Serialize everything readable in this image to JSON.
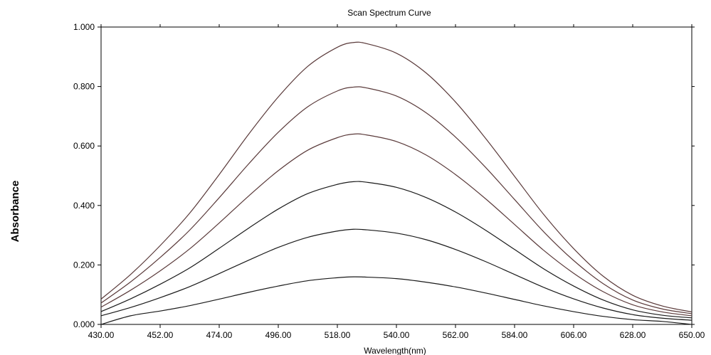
{
  "chart_data": {
    "type": "line",
    "title": "Scan Spectrum Curve",
    "xlabel": "Wavelength(nm)",
    "ylabel": "Absorbance",
    "xlim": [
      430,
      650
    ],
    "ylim": [
      0,
      1
    ],
    "x_ticks": [
      "430.00",
      "452.00",
      "474.00",
      "496.00",
      "518.00",
      "540.00",
      "562.00",
      "584.00",
      "606.00",
      "628.00",
      "650.00"
    ],
    "y_ticks": [
      "0.000",
      "0.200",
      "0.400",
      "0.600",
      "0.800",
      "1.000"
    ],
    "grid": false,
    "colors": {
      "curve_upper": "#5a3a3a",
      "curve_lower": "#1a1a1a",
      "axis": "#000000"
    },
    "x": [
      430,
      441,
      452,
      463,
      474,
      485,
      496,
      507,
      518,
      524,
      529,
      540,
      551,
      562,
      573,
      584,
      595,
      606,
      617,
      628,
      639,
      650
    ],
    "series": [
      {
        "values": [
          0.085,
          0.168,
          0.265,
          0.374,
          0.504,
          0.64,
          0.765,
          0.868,
          0.932,
          0.948,
          0.944,
          0.912,
          0.846,
          0.748,
          0.628,
          0.498,
          0.368,
          0.255,
          0.162,
          0.098,
          0.062,
          0.042
        ]
      },
      {
        "values": [
          0.072,
          0.143,
          0.225,
          0.317,
          0.426,
          0.54,
          0.646,
          0.732,
          0.785,
          0.798,
          0.795,
          0.768,
          0.712,
          0.63,
          0.53,
          0.42,
          0.31,
          0.215,
          0.137,
          0.082,
          0.052,
          0.036
        ]
      },
      {
        "values": [
          0.058,
          0.115,
          0.18,
          0.254,
          0.341,
          0.432,
          0.517,
          0.586,
          0.628,
          0.64,
          0.637,
          0.615,
          0.57,
          0.504,
          0.424,
          0.336,
          0.248,
          0.172,
          0.11,
          0.066,
          0.042,
          0.029
        ]
      },
      {
        "values": [
          0.043,
          0.086,
          0.135,
          0.19,
          0.256,
          0.324,
          0.388,
          0.44,
          0.471,
          0.48,
          0.478,
          0.461,
          0.427,
          0.378,
          0.318,
          0.252,
          0.186,
          0.129,
          0.082,
          0.049,
          0.031,
          0.022
        ]
      },
      {
        "values": [
          0.029,
          0.057,
          0.09,
          0.127,
          0.171,
          0.216,
          0.259,
          0.293,
          0.314,
          0.32,
          0.318,
          0.307,
          0.285,
          0.252,
          0.212,
          0.168,
          0.124,
          0.086,
          0.055,
          0.033,
          0.021,
          0.014
        ]
      },
      {
        "values": [
          0.0,
          0.029,
          0.045,
          0.063,
          0.085,
          0.108,
          0.129,
          0.147,
          0.157,
          0.16,
          0.159,
          0.154,
          0.142,
          0.126,
          0.106,
          0.084,
          0.062,
          0.043,
          0.027,
          0.016,
          0.01,
          0.0
        ]
      }
    ]
  }
}
